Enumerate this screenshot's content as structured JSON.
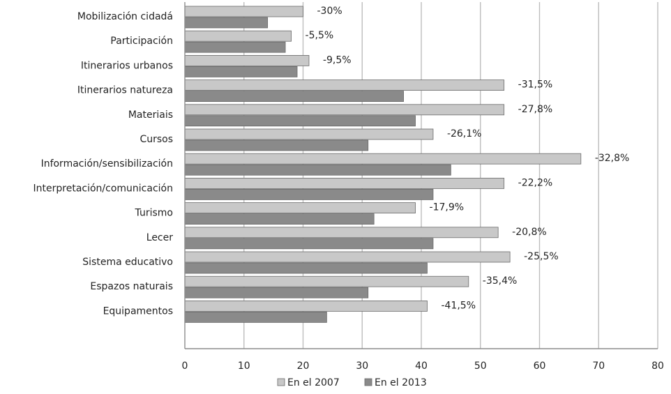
{
  "chart_data": {
    "type": "bar",
    "orientation": "horizontal",
    "categories": [
      "Mobilización cidadá",
      "Participación",
      "Itinerarios urbanos",
      "Itinerarios natureza",
      "Materiais",
      "Cursos",
      "Información/sensibilización",
      "Interpretación/comunicación",
      "Turismo",
      "Lecer",
      "Sistema educativo",
      "Espazos naturais",
      "Equipamentos"
    ],
    "series": [
      {
        "name": "En el 2007",
        "color": "#c8c8c8",
        "values": [
          20,
          18,
          21,
          54,
          54,
          42,
          67,
          54,
          39,
          53,
          55,
          48,
          41
        ]
      },
      {
        "name": "En el 2013",
        "color": "#8a8a8a",
        "values": [
          14,
          17,
          19,
          37,
          39,
          31,
          45,
          42,
          32,
          42,
          41,
          31,
          24
        ]
      }
    ],
    "data_labels": [
      "-30%",
      "-5,5%",
      "-9,5%",
      "-31,5%",
      "-27,8%",
      "-26,1%",
      "-32,8%",
      "-22,2%",
      "-17,9%",
      "-20,8%",
      "-25,5%",
      "-35,4%",
      "-41,5%"
    ],
    "xlim": [
      0,
      80
    ],
    "x_ticks": [
      "0",
      "10",
      "20",
      "30",
      "40",
      "50",
      "60",
      "70",
      "80"
    ],
    "grid": true,
    "legend_position": "bottom"
  }
}
